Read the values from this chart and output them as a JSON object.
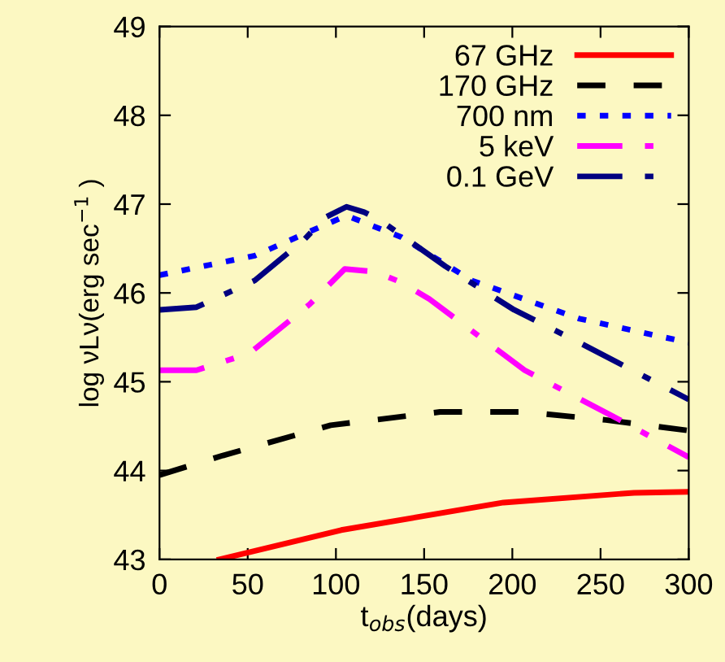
{
  "chart_data": {
    "type": "line",
    "xlabel": "t$_{obs}$(days)",
    "ylabel": "log νLν(erg sec$^{−1}$ )",
    "xlim": [
      0,
      300
    ],
    "ylim": [
      43,
      49
    ],
    "xticks": [
      0,
      50,
      100,
      150,
      200,
      250,
      300
    ],
    "yticks": [
      43,
      44,
      45,
      46,
      47,
      48,
      49
    ],
    "grid": false,
    "legend": "top right",
    "marker": "none",
    "series": [
      {
        "name": "67 GHz",
        "color": "#ff0000",
        "line_style": "solid",
        "x": [
          34,
          103,
          195,
          269,
          300
        ],
        "values": [
          43.0,
          43.33,
          43.64,
          43.75,
          43.76
        ]
      },
      {
        "name": "170 GHz",
        "color": "#000000",
        "line_style": "dashed",
        "x": [
          0,
          36,
          97,
          159,
          207,
          253,
          300
        ],
        "values": [
          43.95,
          44.17,
          44.51,
          44.66,
          44.66,
          44.57,
          44.45
        ]
      },
      {
        "name": "700 nm",
        "color": "#0000ff",
        "line_style": "dotted",
        "x": [
          0,
          54,
          85,
          106,
          137,
          177,
          238,
          300
        ],
        "values": [
          46.2,
          46.42,
          46.69,
          46.87,
          46.63,
          46.14,
          45.71,
          45.44
        ]
      },
      {
        "name": "5 keV",
        "color": "#ff00ff",
        "line_style": "dashdot",
        "x": [
          0,
          21,
          51,
          85,
          105,
          122,
          137,
          153,
          207,
          260,
          300
        ],
        "values": [
          45.13,
          45.13,
          45.32,
          45.87,
          46.27,
          46.24,
          46.12,
          45.93,
          45.13,
          44.58,
          44.15
        ]
      },
      {
        "name": "0.1 GeV",
        "color": "#000080",
        "line_style": "dashdot",
        "x": [
          0,
          21,
          54,
          82,
          94,
          106,
          116,
          125,
          162,
          201,
          238,
          300
        ],
        "values": [
          45.81,
          45.84,
          46.14,
          46.6,
          46.85,
          46.97,
          46.91,
          46.82,
          46.3,
          45.81,
          45.44,
          44.8
        ]
      }
    ]
  }
}
